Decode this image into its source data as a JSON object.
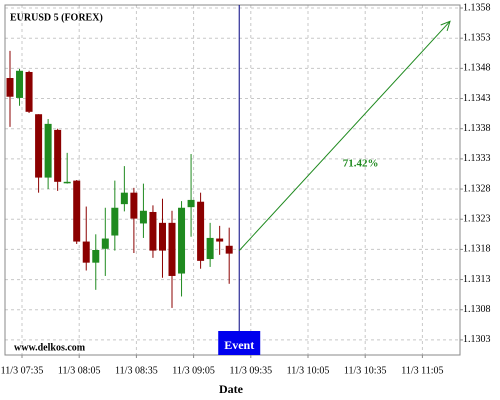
{
  "chart_data": {
    "type": "candlestick",
    "title": "EURUSD 5 (FOREX)",
    "watermark": "www.delkos.com",
    "xlabel": "Date",
    "categories": [
      "11/3 07:35",
      "11/3 08:05",
      "11/3 08:35",
      "11/3 09:05",
      "11/3 09:35",
      "11/3 10:05",
      "11/3 10:35",
      "11/3 11:05"
    ],
    "open": [
      1.13464,
      1.13431,
      1.13474,
      1.13404,
      1.13299,
      1.13378,
      1.1329,
      1.13294,
      1.13193,
      1.13158,
      1.13181,
      1.13203,
      1.13255,
      1.13274,
      1.13223,
      1.13242,
      1.13224,
      1.13224,
      1.1314,
      1.1325,
      1.13259,
      1.13164,
      1.13198,
      1.13186
    ],
    "high": [
      1.13509,
      1.13479,
      1.13476,
      1.13404,
      1.13396,
      1.1338,
      1.1334,
      1.13295,
      1.13251,
      1.13205,
      1.13249,
      1.13294,
      1.13318,
      1.13282,
      1.13289,
      1.13253,
      1.13264,
      1.13244,
      1.1326,
      1.13338,
      1.13274,
      1.13224,
      1.13219,
      1.13216
    ],
    "low": [
      1.13383,
      1.13418,
      1.13406,
      1.13274,
      1.1328,
      1.13277,
      1.13289,
      1.13189,
      1.13145,
      1.13113,
      1.13136,
      1.13178,
      1.13243,
      1.13174,
      1.13199,
      1.13166,
      1.13133,
      1.13083,
      1.13102,
      1.13201,
      1.13148,
      1.13151,
      1.13171,
      1.13123
    ],
    "close": [
      1.13433,
      1.13476,
      1.13408,
      1.13299,
      1.13388,
      1.13292,
      1.13292,
      1.13193,
      1.13158,
      1.13179,
      1.13198,
      1.13249,
      1.13274,
      1.13231,
      1.13244,
      1.13178,
      1.13178,
      1.13136,
      1.13249,
      1.13262,
      1.13161,
      1.13199,
      1.13193,
      1.13173
    ],
    "up_color": "#1f8a1f",
    "down_color": "#8b0000",
    "ylim": [
      1.13005,
      1.13585
    ],
    "yticks": [
      1.1303,
      1.1308,
      1.1313,
      1.1318,
      1.1323,
      1.1328,
      1.1333,
      1.1338,
      1.1343,
      1.1348,
      1.1353,
      1.1358
    ],
    "grid": true,
    "event": {
      "label": "Event",
      "color": "#0000ee"
    },
    "projection": {
      "from": 1.13178,
      "to": 1.13558,
      "label": "71.42%",
      "color": "#1f8a1f"
    }
  }
}
